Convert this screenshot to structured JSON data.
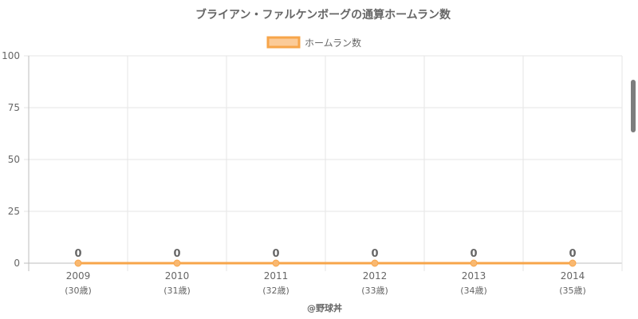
{
  "chart_data": {
    "type": "line",
    "title": "ブライアン・ファルケンボーグの通算ホームラン数",
    "legend": "top-center",
    "grid": true,
    "categories": [
      "2009",
      "2010",
      "2011",
      "2012",
      "2013",
      "2014"
    ],
    "sublabels": [
      "(30歳)",
      "(31歳)",
      "(32歳)",
      "(33歳)",
      "(34歳)",
      "(35歳)"
    ],
    "ylim": [
      0,
      100
    ],
    "yticks": [
      0,
      25,
      50,
      75,
      100
    ],
    "series": [
      {
        "name": "ホームラン数",
        "values": [
          0,
          0,
          0,
          0,
          0,
          0
        ]
      }
    ],
    "data_labels": [
      "0",
      "0",
      "0",
      "0",
      "0",
      "0"
    ]
  },
  "colors": {
    "series_line": "#f7a54a",
    "series_fill": "#fbcb98",
    "point": "#f9b870",
    "grid": "#e6e6e6",
    "axis": "#bdbdbd",
    "text": "#666666"
  },
  "footer": {
    "credit": "@野球丼"
  }
}
